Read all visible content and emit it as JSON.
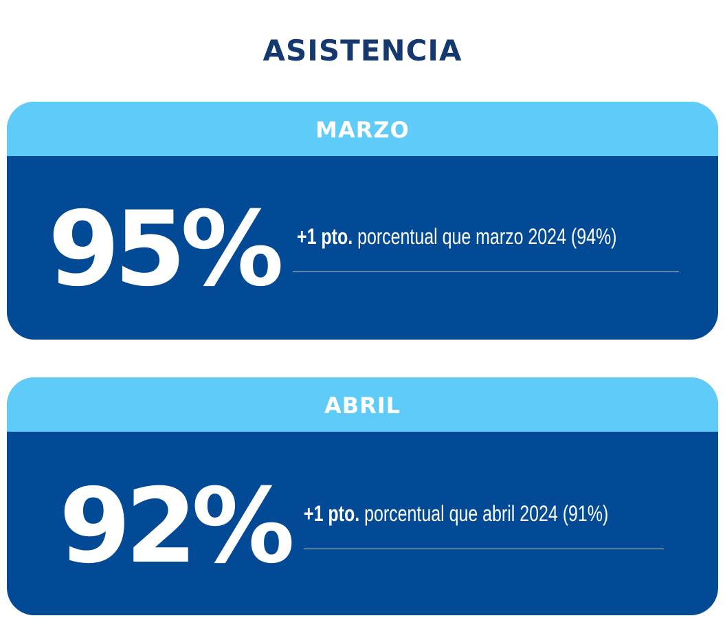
{
  "title": "ASISTENCIA",
  "colors": {
    "title": "#15396f",
    "header_bg": "#5ecbf8",
    "body_bg": "#034a96",
    "text": "#ffffff"
  },
  "cards": [
    {
      "month": "MARZO",
      "value": "95%",
      "delta": "+1 pto.",
      "comparison": "porcentual que marzo 2024 (94%)"
    },
    {
      "month": "ABRIL",
      "value": "92%",
      "delta": "+1 pto.",
      "comparison": "porcentual que abril 2024 (91%)"
    }
  ]
}
